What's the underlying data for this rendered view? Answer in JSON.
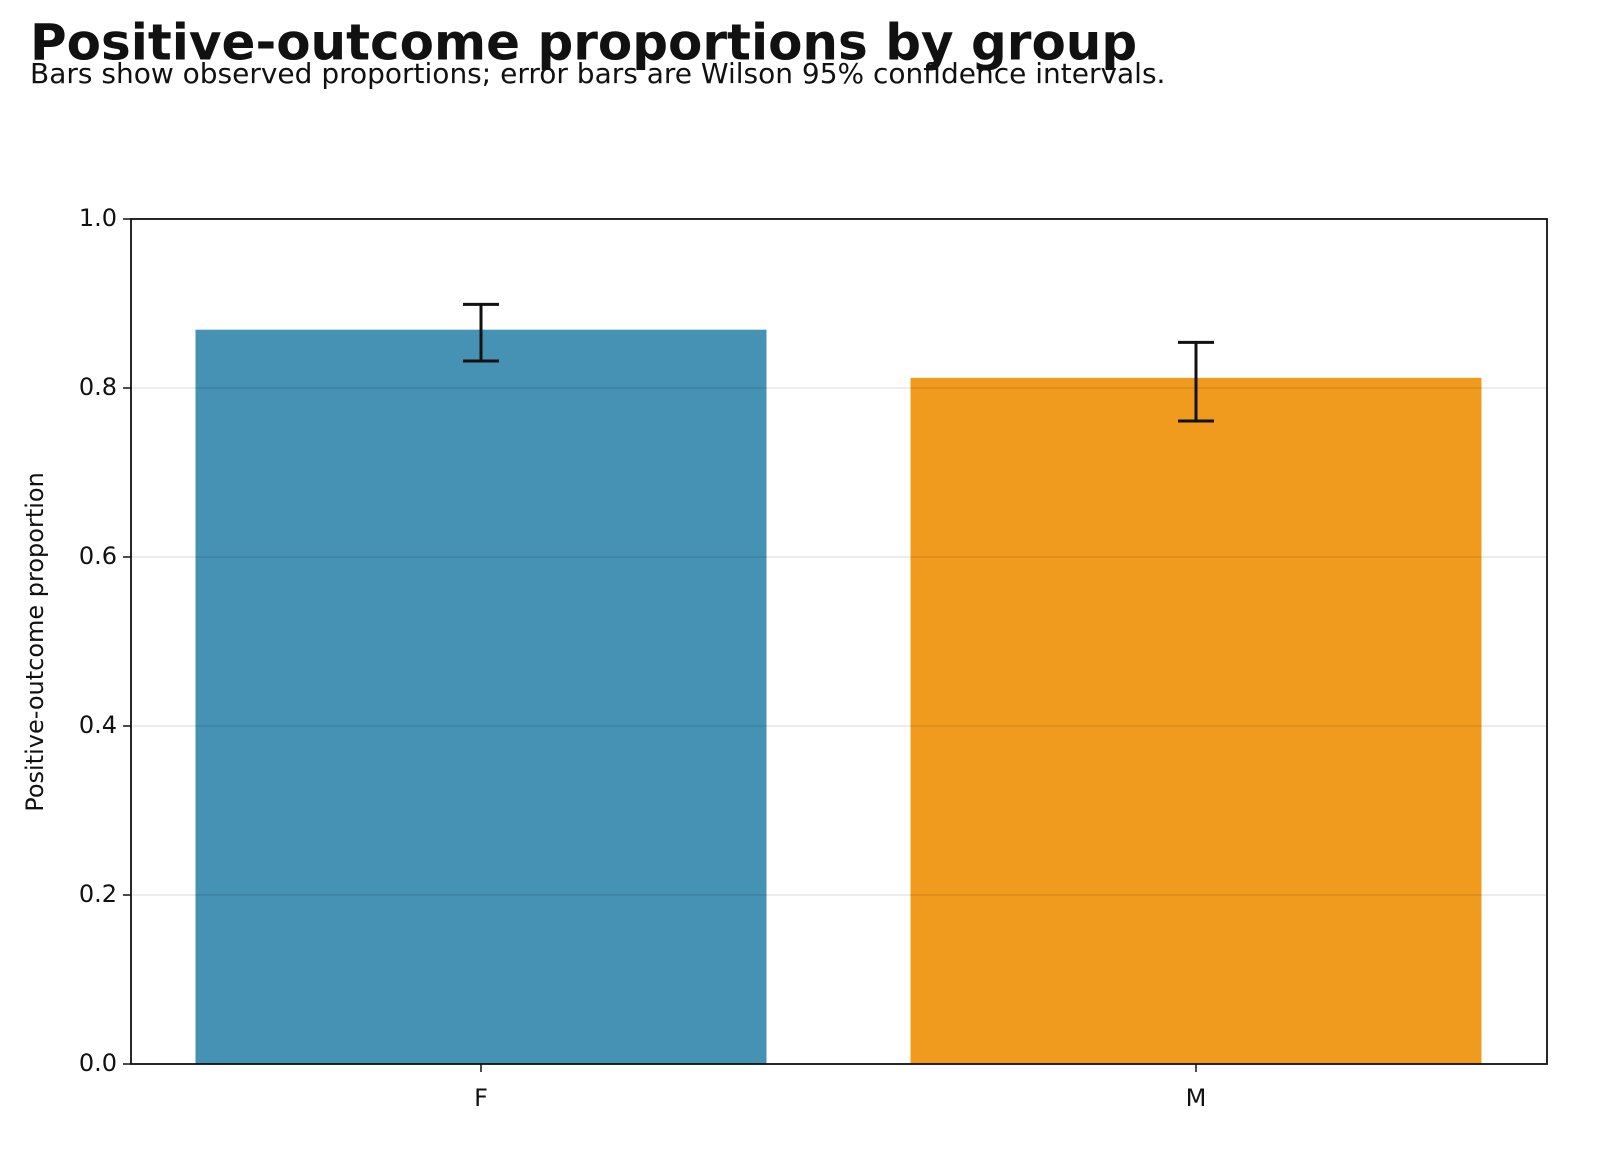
{
  "chart_data": {
    "type": "bar",
    "title": "Positive-outcome proportions by group",
    "subtitle": "Bars show observed proportions; error bars are Wilson 95% confidence intervals.",
    "y_label": "Positive-outcome proportion",
    "categories": [
      "F",
      "M"
    ],
    "values": [
      0.869,
      0.812
    ],
    "ci_lower": [
      0.832,
      0.761
    ],
    "ci_upper": [
      0.899,
      0.854
    ],
    "colors": [
      "#4592b5",
      "#f09b1e"
    ],
    "ylim": [
      0,
      1
    ],
    "yticks": [
      {
        "value": 0,
        "label": "0.0"
      },
      {
        "value": 0.2,
        "label": "0.2"
      },
      {
        "value": 0.4,
        "label": "0.4"
      },
      {
        "value": 0.6,
        "label": "0.6"
      },
      {
        "value": 0.8,
        "label": "0.8"
      },
      {
        "value": 1,
        "label": "1.0"
      }
    ],
    "grid": true
  }
}
